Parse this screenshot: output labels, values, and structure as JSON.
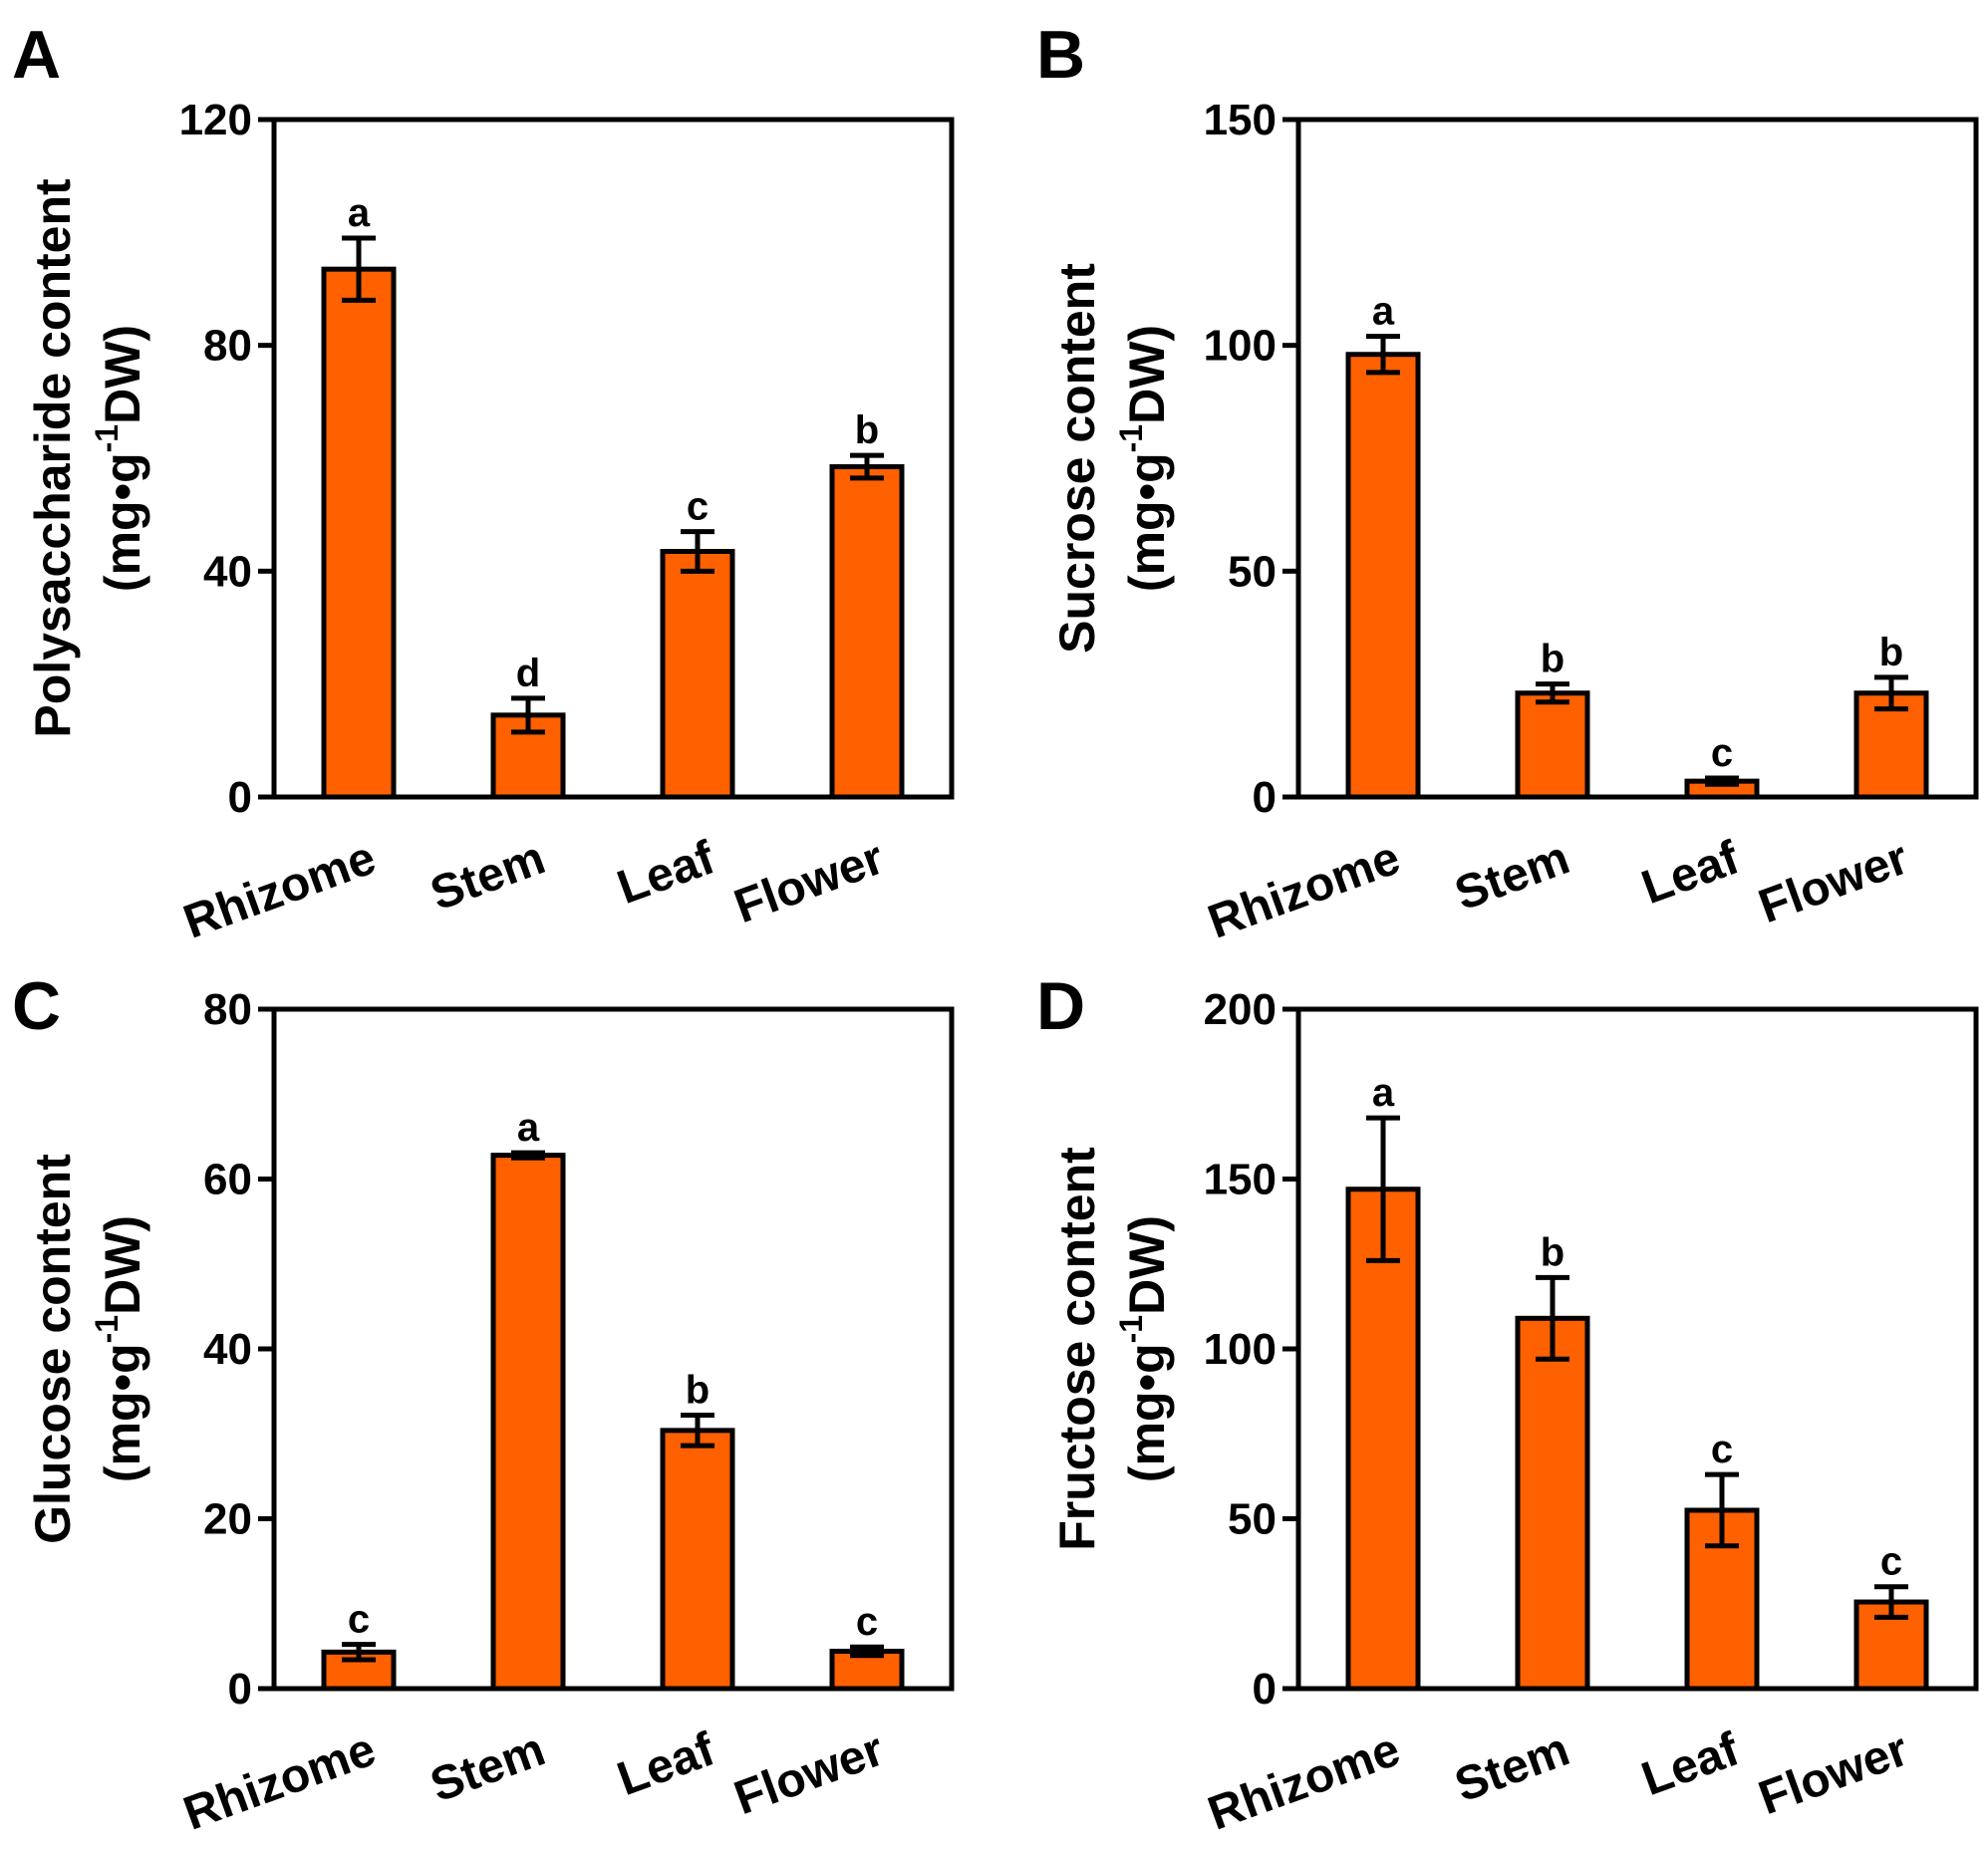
{
  "chart_data": [
    {
      "type": "bar",
      "panel": "A",
      "categories": [
        "Rhizome",
        "Stem",
        "Leaf",
        "Flower"
      ],
      "values": [
        93.5,
        14.5,
        43.5,
        58.5
      ],
      "errors": [
        5.5,
        3,
        3.5,
        2
      ],
      "significance": [
        "a",
        "d",
        "c",
        "b"
      ],
      "ylabel_line1": "Polysaccharide content",
      "unit": {
        "pre": "(mg•g",
        "sup": "-1",
        "post": "DW)"
      },
      "ylim": [
        0,
        120
      ],
      "yticks": [
        0,
        40,
        80,
        120
      ],
      "color": "#ff6000"
    },
    {
      "type": "bar",
      "panel": "B",
      "categories": [
        "Rhizome",
        "Stem",
        "Leaf",
        "Flower"
      ],
      "values": [
        98,
        23,
        3.5,
        23
      ],
      "errors": [
        4,
        2,
        0.7,
        3.5
      ],
      "significance": [
        "a",
        "b",
        "c",
        "b"
      ],
      "ylabel_line1": "Sucrose content",
      "unit": {
        "pre": "(mg•g",
        "sup": "-1",
        "post": "DW)"
      },
      "ylim": [
        0,
        150
      ],
      "yticks": [
        0,
        50,
        100,
        150
      ],
      "color": "#ff6000"
    },
    {
      "type": "bar",
      "panel": "C",
      "categories": [
        "Rhizome",
        "Stem",
        "Leaf",
        "Flower"
      ],
      "values": [
        4.3,
        62.8,
        30.4,
        4.4
      ],
      "errors": [
        0.9,
        0.3,
        1.8,
        0.5
      ],
      "significance": [
        "c",
        "a",
        "b",
        "c"
      ],
      "ylabel_line1": "Glucose content",
      "unit": {
        "pre": "(mg•g",
        "sup": "-1",
        "post": "DW)"
      },
      "ylim": [
        0,
        80
      ],
      "yticks": [
        0,
        20,
        40,
        60,
        80
      ],
      "color": "#ff6000"
    },
    {
      "type": "bar",
      "panel": "D",
      "categories": [
        "Rhizome",
        "Stem",
        "Leaf",
        "Flower"
      ],
      "values": [
        147,
        109,
        52.5,
        25.5
      ],
      "errors": [
        21,
        12,
        10.5,
        4.5
      ],
      "significance": [
        "a",
        "b",
        "c",
        "c"
      ],
      "ylabel_line1": "Fructose content",
      "unit": {
        "pre": "(mg•g",
        "sup": "-1",
        "post": "DW)"
      },
      "ylim": [
        0,
        200
      ],
      "yticks": [
        0,
        50,
        100,
        150,
        200
      ],
      "color": "#ff6000"
    }
  ]
}
